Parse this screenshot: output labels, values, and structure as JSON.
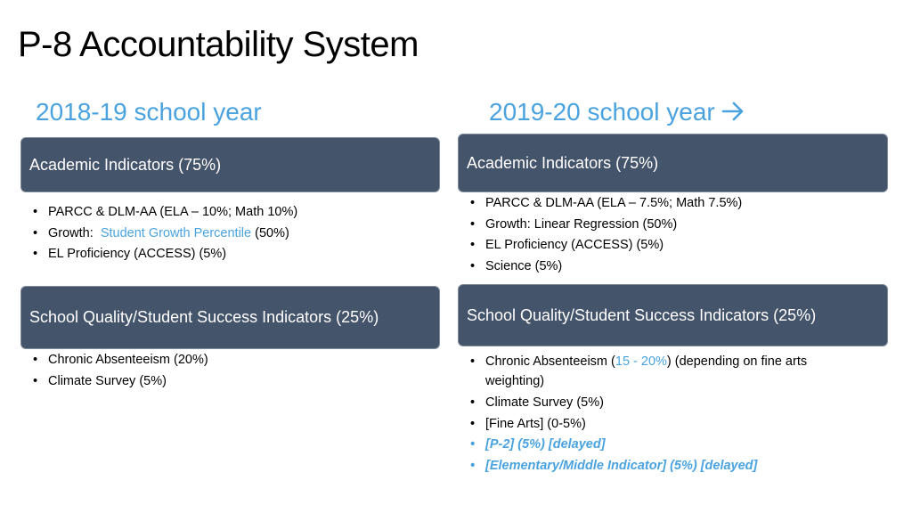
{
  "title": "P-8 Accountability System",
  "accent_color": "#4aa3df",
  "box_color": "#44546a",
  "left": {
    "year": "2018-19 school year",
    "academic_header": "Academic Indicators (75%)",
    "academic_items": {
      "parcc": "PARCC & DLM-AA  (ELA – 10%; Math 10%)",
      "growth_prefix": "Growth:  ",
      "growth_link": "Student Growth Percentile",
      "growth_suffix": " (50%)",
      "el": "EL Proficiency (ACCESS) (5%)"
    },
    "quality_header": "School Quality/Student Success Indicators (25%)",
    "quality_items": [
      "Chronic Absenteeism (20%)",
      "Climate Survey (5%)"
    ]
  },
  "right": {
    "year": "2019-20 school year",
    "arrow_icon": "arrow-right-icon",
    "academic_header": "Academic Indicators (75%)",
    "academic_items": [
      "PARCC & DLM-AA  (ELA – 7.5%; Math 7.5%)",
      "Growth:  Linear Regression (50%)",
      "EL Proficiency (ACCESS) (5%)",
      "Science (5%)"
    ],
    "quality_header": "School Quality/Student Success Indicators (25%)",
    "chronic": {
      "prefix": "Chronic Absenteeism (",
      "range": "15 - 20%",
      "suffix": ") (depending on fine arts weighting)"
    },
    "quality_items": [
      "Climate Survey (5%)",
      "[Fine Arts] (0-5%)"
    ],
    "delayed_items": [
      "[P-2] (5%) [delayed]",
      "[Elementary/Middle Indicator] (5%) [delayed]"
    ]
  }
}
